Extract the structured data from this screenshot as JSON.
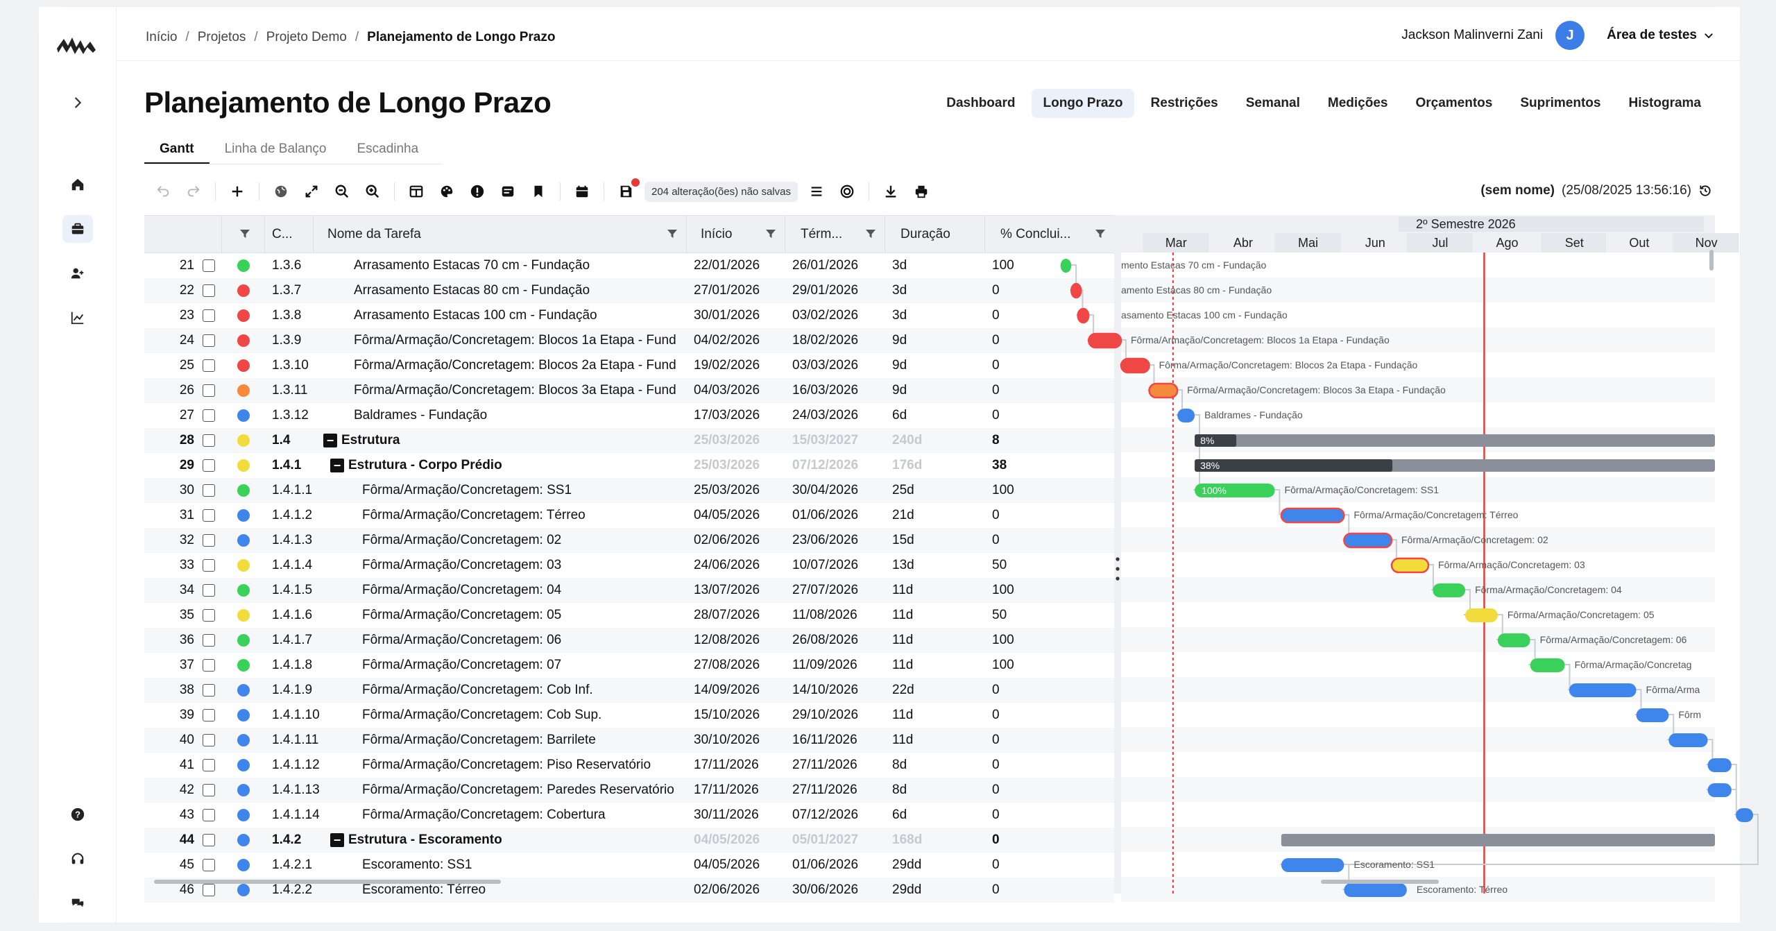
{
  "breadcrumb": {
    "items": [
      "Início",
      "Projetos",
      "Projeto Demo"
    ],
    "current": "Planejamento de Longo Prazo"
  },
  "user": {
    "name": "Jackson Malinverni Zani",
    "initial": "J",
    "workspace": "Área de testes"
  },
  "page_title": "Planejamento de Longo Prazo",
  "nav_tabs": [
    "Dashboard",
    "Longo Prazo",
    "Restrições",
    "Semanal",
    "Medições",
    "Orçamentos",
    "Suprimentos",
    "Histograma"
  ],
  "nav_active": "Longo Prazo",
  "view_tabs": [
    "Gantt",
    "Linha de Balanço",
    "Escadinha"
  ],
  "view_active": "Gantt",
  "toolbar": {
    "unsaved": "204 alteração(ões) não salvas"
  },
  "version": {
    "label": "(sem nome)",
    "date": "(25/08/2025 13:56:16)"
  },
  "columns": {
    "code": "C...",
    "name": "Nome da Tarefa",
    "start": "Início",
    "end": "Térm...",
    "duration": "Duração",
    "pct": "% Conclui..."
  },
  "gantt_header": {
    "semester": "2º Semestre 2026",
    "months": [
      "Mar",
      "Abr",
      "Mai",
      "Jun",
      "Jul",
      "Ago",
      "Set",
      "Out",
      "Nov"
    ]
  },
  "colors": {
    "green": "#3ad15a",
    "red": "#ef4646",
    "orange": "#f68a3c",
    "blue": "#3f86ec",
    "yellow": "#f2dc3c",
    "summary_dark": "#3b3f46",
    "summary_light": "#8a8f99"
  },
  "rows": [
    {
      "num": "21",
      "status": "green",
      "code": "1.3.6",
      "name": "Arrasamento Estacas 70 cm - Fundação",
      "start": "22/01/2026",
      "end": "26/01/2026",
      "dur": "3d",
      "pct": "100",
      "level": 2,
      "bar_label": "mento Estacas 70 cm - Fundação"
    },
    {
      "num": "22",
      "status": "red",
      "code": "1.3.7",
      "name": "Arrasamento Estacas 80 cm - Fundação",
      "start": "27/01/2026",
      "end": "29/01/2026",
      "dur": "3d",
      "pct": "0",
      "level": 2,
      "bar_label": "amento Estacas 80 cm - Fundação"
    },
    {
      "num": "23",
      "status": "red",
      "code": "1.3.8",
      "name": "Arrasamento Estacas 100 cm - Fundação",
      "start": "30/01/2026",
      "end": "03/02/2026",
      "dur": "3d",
      "pct": "0",
      "level": 2,
      "bar_label": "asamento Estacas 100 cm - Fundação"
    },
    {
      "num": "24",
      "status": "red",
      "code": "1.3.9",
      "name": "Fôrma/Armação/Concretagem: Blocos 1a Etapa - Fund",
      "start": "04/02/2026",
      "end": "18/02/2026",
      "dur": "9d",
      "pct": "0",
      "level": 2,
      "bar_label": "Fôrma/Armação/Concretagem: Blocos 1a Etapa - Fundação"
    },
    {
      "num": "25",
      "status": "red",
      "code": "1.3.10",
      "name": "Fôrma/Armação/Concretagem: Blocos 2a Etapa - Fund",
      "start": "19/02/2026",
      "end": "03/03/2026",
      "dur": "9d",
      "pct": "0",
      "level": 2,
      "bar_label": "Fôrma/Armação/Concretagem: Blocos 2a Etapa - Fundação"
    },
    {
      "num": "26",
      "status": "orange",
      "code": "1.3.11",
      "name": "Fôrma/Armação/Concretagem: Blocos 3a Etapa - Fund",
      "start": "04/03/2026",
      "end": "16/03/2026",
      "dur": "9d",
      "pct": "0",
      "level": 2,
      "bar_label": "Fôrma/Armação/Concretagem: Blocos 3a Etapa - Fundação"
    },
    {
      "num": "27",
      "status": "blue",
      "code": "1.3.12",
      "name": "Baldrames - Fundação",
      "start": "17/03/2026",
      "end": "24/03/2026",
      "dur": "6d",
      "pct": "0",
      "level": 2,
      "bar_label": "Baldrames - Fundação"
    },
    {
      "num": "28",
      "status": "yellow",
      "code": "1.4",
      "name": "Estrutura",
      "start": "25/03/2026",
      "end": "15/03/2027",
      "dur": "240d",
      "pct": "8",
      "level": 0,
      "summary": true,
      "bar_label": "8%"
    },
    {
      "num": "29",
      "status": "yellow",
      "code": "1.4.1",
      "name": "Estrutura - Corpo Prédio",
      "start": "25/03/2026",
      "end": "07/12/2026",
      "dur": "176d",
      "pct": "38",
      "level": 1,
      "summary": true,
      "bar_label": "38%"
    },
    {
      "num": "30",
      "status": "green",
      "code": "1.4.1.1",
      "name": "Fôrma/Armação/Concretagem: SS1",
      "start": "25/03/2026",
      "end": "30/04/2026",
      "dur": "25d",
      "pct": "100",
      "level": 3,
      "bar_label": "Fôrma/Armação/Concretagem: SS1",
      "bar_text": "100%"
    },
    {
      "num": "31",
      "status": "blue",
      "code": "1.4.1.2",
      "name": "Fôrma/Armação/Concretagem: Térreo",
      "start": "04/05/2026",
      "end": "01/06/2026",
      "dur": "21d",
      "pct": "0",
      "level": 3,
      "bar_label": "Fôrma/Armação/Concretagem: Térreo"
    },
    {
      "num": "32",
      "status": "blue",
      "code": "1.4.1.3",
      "name": "Fôrma/Armação/Concretagem: 02",
      "start": "02/06/2026",
      "end": "23/06/2026",
      "dur": "15d",
      "pct": "0",
      "level": 3,
      "bar_label": "Fôrma/Armação/Concretagem: 02"
    },
    {
      "num": "33",
      "status": "yellow",
      "code": "1.4.1.4",
      "name": "Fôrma/Armação/Concretagem: 03",
      "start": "24/06/2026",
      "end": "10/07/2026",
      "dur": "13d",
      "pct": "50",
      "level": 3,
      "bar_label": "Fôrma/Armação/Concretagem: 03"
    },
    {
      "num": "34",
      "status": "green",
      "code": "1.4.1.5",
      "name": "Fôrma/Armação/Concretagem: 04",
      "start": "13/07/2026",
      "end": "27/07/2026",
      "dur": "11d",
      "pct": "100",
      "level": 3,
      "bar_label": "Fôrma/Armação/Concretagem: 04"
    },
    {
      "num": "35",
      "status": "yellow",
      "code": "1.4.1.6",
      "name": "Fôrma/Armação/Concretagem: 05",
      "start": "28/07/2026",
      "end": "11/08/2026",
      "dur": "11d",
      "pct": "50",
      "level": 3,
      "bar_label": "Fôrma/Armação/Concretagem: 05"
    },
    {
      "num": "36",
      "status": "green",
      "code": "1.4.1.7",
      "name": "Fôrma/Armação/Concretagem: 06",
      "start": "12/08/2026",
      "end": "26/08/2026",
      "dur": "11d",
      "pct": "100",
      "level": 3,
      "bar_label": "Fôrma/Armação/Concretagem: 06"
    },
    {
      "num": "37",
      "status": "green",
      "code": "1.4.1.8",
      "name": "Fôrma/Armação/Concretagem: 07",
      "start": "27/08/2026",
      "end": "11/09/2026",
      "dur": "11d",
      "pct": "100",
      "level": 3,
      "bar_label": "Fôrma/Armação/Concretag"
    },
    {
      "num": "38",
      "status": "blue",
      "code": "1.4.1.9",
      "name": "Fôrma/Armação/Concretagem: Cob Inf.",
      "start": "14/09/2026",
      "end": "14/10/2026",
      "dur": "22d",
      "pct": "0",
      "level": 3,
      "bar_label": "Fôrma/Arma"
    },
    {
      "num": "39",
      "status": "blue",
      "code": "1.4.1.10",
      "name": "Fôrma/Armação/Concretagem: Cob Sup.",
      "start": "15/10/2026",
      "end": "29/10/2026",
      "dur": "11d",
      "pct": "0",
      "level": 3,
      "bar_label": "Fôrm"
    },
    {
      "num": "40",
      "status": "blue",
      "code": "1.4.1.11",
      "name": "Fôrma/Armação/Concretagem: Barrilete",
      "start": "30/10/2026",
      "end": "16/11/2026",
      "dur": "11d",
      "pct": "0",
      "level": 3,
      "bar_label": ""
    },
    {
      "num": "41",
      "status": "blue",
      "code": "1.4.1.12",
      "name": "Fôrma/Armação/Concretagem: Piso Reservatório",
      "start": "17/11/2026",
      "end": "27/11/2026",
      "dur": "8d",
      "pct": "0",
      "level": 3,
      "bar_label": ""
    },
    {
      "num": "42",
      "status": "blue",
      "code": "1.4.1.13",
      "name": "Fôrma/Armação/Concretagem: Paredes Reservatório",
      "start": "17/11/2026",
      "end": "27/11/2026",
      "dur": "8d",
      "pct": "0",
      "level": 3,
      "bar_label": ""
    },
    {
      "num": "43",
      "status": "blue",
      "code": "1.4.1.14",
      "name": "Fôrma/Armação/Concretagem: Cobertura",
      "start": "30/11/2026",
      "end": "07/12/2026",
      "dur": "6d",
      "pct": "0",
      "level": 3,
      "bar_label": ""
    },
    {
      "num": "44",
      "status": "blue",
      "code": "1.4.2",
      "name": "Estrutura - Escoramento",
      "start": "04/05/2026",
      "end": "05/01/2027",
      "dur": "168d",
      "pct": "0",
      "level": 1,
      "summary": true,
      "bar_label": ""
    },
    {
      "num": "45",
      "status": "blue",
      "code": "1.4.2.1",
      "name": "Escoramento: SS1",
      "start": "04/05/2026",
      "end": "01/06/2026",
      "dur": "29dd",
      "pct": "0",
      "level": 3,
      "bar_label": "Escoramento: SS1"
    },
    {
      "num": "46",
      "status": "blue",
      "code": "1.4.2.2",
      "name": "Escoramento: Térreo",
      "start": "02/06/2026",
      "end": "30/06/2026",
      "dur": "29dd",
      "pct": "0",
      "level": 3,
      "bar_label": "Escoramento: Térreo"
    }
  ]
}
